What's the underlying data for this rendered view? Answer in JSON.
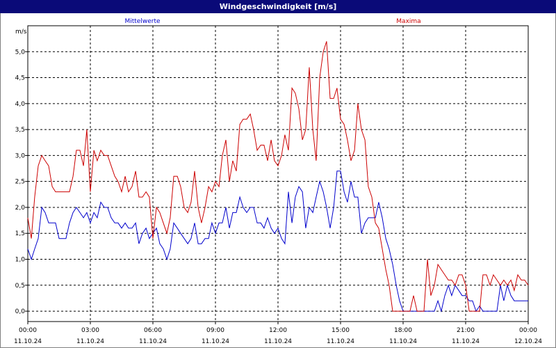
{
  "window": {
    "title": "Windgeschwindigkeit [m/s]"
  },
  "chart_data": {
    "type": "line",
    "title": "Windgeschwindigkeit [m/s]",
    "ylabel": "m/s",
    "ylim": [
      -0.2,
      5.5
    ],
    "y_ticks": [
      "5,0",
      "4,5",
      "4,0",
      "3,5",
      "3,0",
      "2,5",
      "2,0",
      "1,5",
      "1,0",
      "0,5",
      "0,0"
    ],
    "y_tick_values": [
      5.0,
      4.5,
      4.0,
      3.5,
      3.0,
      2.5,
      2.0,
      1.5,
      1.0,
      0.5,
      0.0
    ],
    "x_range_hours": [
      0,
      24
    ],
    "x_ticks": [
      {
        "time": "00:00",
        "date": "11.10.24"
      },
      {
        "time": "03:00",
        "date": "11.10.24"
      },
      {
        "time": "06:00",
        "date": "11.10.24"
      },
      {
        "time": "09:00",
        "date": "11.10.24"
      },
      {
        "time": "12:00",
        "date": "11.10.24"
      },
      {
        "time": "15:00",
        "date": "11.10.24"
      },
      {
        "time": "18:00",
        "date": "11.10.24"
      },
      {
        "time": "21:00",
        "date": "11.10.24"
      },
      {
        "time": "00:00",
        "date": "12.10.24"
      }
    ],
    "grid": true,
    "series": [
      {
        "name": "Mittelwerte",
        "color": "#0000cc",
        "points": [
          [
            0.0,
            1.2
          ],
          [
            0.17,
            1.0
          ],
          [
            0.33,
            1.2
          ],
          [
            0.5,
            1.4
          ],
          [
            0.67,
            2.0
          ],
          [
            0.83,
            1.9
          ],
          [
            1.0,
            1.7
          ],
          [
            1.17,
            1.7
          ],
          [
            1.33,
            1.7
          ],
          [
            1.5,
            1.4
          ],
          [
            1.67,
            1.4
          ],
          [
            1.83,
            1.4
          ],
          [
            2.0,
            1.7
          ],
          [
            2.17,
            1.9
          ],
          [
            2.33,
            2.0
          ],
          [
            2.5,
            1.9
          ],
          [
            2.67,
            1.8
          ],
          [
            2.83,
            1.9
          ],
          [
            3.0,
            1.7
          ],
          [
            3.17,
            1.9
          ],
          [
            3.33,
            1.8
          ],
          [
            3.5,
            2.1
          ],
          [
            3.67,
            2.0
          ],
          [
            3.83,
            2.0
          ],
          [
            4.0,
            1.8
          ],
          [
            4.17,
            1.7
          ],
          [
            4.33,
            1.7
          ],
          [
            4.5,
            1.6
          ],
          [
            4.67,
            1.7
          ],
          [
            4.83,
            1.6
          ],
          [
            5.0,
            1.6
          ],
          [
            5.17,
            1.7
          ],
          [
            5.33,
            1.3
          ],
          [
            5.5,
            1.5
          ],
          [
            5.67,
            1.6
          ],
          [
            5.83,
            1.4
          ],
          [
            6.0,
            1.5
          ],
          [
            6.17,
            1.6
          ],
          [
            6.33,
            1.3
          ],
          [
            6.5,
            1.2
          ],
          [
            6.67,
            1.0
          ],
          [
            6.83,
            1.2
          ],
          [
            7.0,
            1.7
          ],
          [
            7.17,
            1.6
          ],
          [
            7.33,
            1.5
          ],
          [
            7.5,
            1.4
          ],
          [
            7.67,
            1.3
          ],
          [
            7.83,
            1.4
          ],
          [
            8.0,
            1.7
          ],
          [
            8.17,
            1.3
          ],
          [
            8.33,
            1.3
          ],
          [
            8.5,
            1.4
          ],
          [
            8.67,
            1.4
          ],
          [
            8.83,
            1.7
          ],
          [
            9.0,
            1.5
          ],
          [
            9.17,
            1.7
          ],
          [
            9.33,
            1.7
          ],
          [
            9.5,
            2.0
          ],
          [
            9.67,
            1.6
          ],
          [
            9.83,
            1.9
          ],
          [
            10.0,
            1.9
          ],
          [
            10.17,
            2.2
          ],
          [
            10.33,
            2.0
          ],
          [
            10.5,
            1.9
          ],
          [
            10.67,
            2.0
          ],
          [
            10.83,
            2.0
          ],
          [
            11.0,
            1.7
          ],
          [
            11.17,
            1.7
          ],
          [
            11.33,
            1.6
          ],
          [
            11.5,
            1.8
          ],
          [
            11.67,
            1.6
          ],
          [
            11.83,
            1.5
          ],
          [
            12.0,
            1.6
          ],
          [
            12.17,
            1.4
          ],
          [
            12.33,
            1.3
          ],
          [
            12.5,
            2.3
          ],
          [
            12.67,
            1.7
          ],
          [
            12.83,
            2.2
          ],
          [
            13.0,
            2.4
          ],
          [
            13.17,
            2.3
          ],
          [
            13.33,
            1.6
          ],
          [
            13.5,
            2.0
          ],
          [
            13.67,
            1.9
          ],
          [
            13.83,
            2.2
          ],
          [
            14.0,
            2.5
          ],
          [
            14.17,
            2.3
          ],
          [
            14.33,
            2.0
          ],
          [
            14.5,
            1.6
          ],
          [
            14.67,
            2.0
          ],
          [
            14.83,
            2.7
          ],
          [
            15.0,
            2.7
          ],
          [
            15.17,
            2.3
          ],
          [
            15.33,
            2.1
          ],
          [
            15.5,
            2.5
          ],
          [
            15.67,
            2.2
          ],
          [
            15.83,
            2.2
          ],
          [
            16.0,
            1.5
          ],
          [
            16.17,
            1.7
          ],
          [
            16.33,
            1.8
          ],
          [
            16.5,
            1.8
          ],
          [
            16.67,
            1.8
          ],
          [
            16.83,
            2.1
          ],
          [
            17.0,
            1.8
          ],
          [
            17.17,
            1.4
          ],
          [
            17.33,
            1.2
          ],
          [
            17.5,
            0.9
          ],
          [
            17.67,
            0.5
          ],
          [
            17.83,
            0.2
          ],
          [
            18.0,
            0.0
          ],
          [
            18.17,
            0.0
          ],
          [
            18.33,
            0.0
          ],
          [
            18.5,
            0.0
          ],
          [
            18.67,
            0.0
          ],
          [
            18.83,
            0.0
          ],
          [
            19.0,
            0.0
          ],
          [
            19.17,
            0.0
          ],
          [
            19.33,
            0.0
          ],
          [
            19.5,
            0.0
          ],
          [
            19.67,
            0.2
          ],
          [
            19.83,
            0.0
          ],
          [
            20.0,
            0.3
          ],
          [
            20.17,
            0.5
          ],
          [
            20.33,
            0.3
          ],
          [
            20.5,
            0.5
          ],
          [
            20.67,
            0.4
          ],
          [
            20.83,
            0.3
          ],
          [
            21.0,
            0.3
          ],
          [
            21.17,
            0.2
          ],
          [
            21.33,
            0.2
          ],
          [
            21.5,
            0.0
          ],
          [
            21.67,
            0.1
          ],
          [
            21.83,
            0.0
          ],
          [
            22.0,
            0.0
          ],
          [
            22.17,
            0.0
          ],
          [
            22.33,
            0.0
          ],
          [
            22.5,
            0.0
          ],
          [
            22.67,
            0.5
          ],
          [
            22.83,
            0.2
          ],
          [
            23.0,
            0.5
          ],
          [
            23.17,
            0.3
          ],
          [
            23.33,
            0.2
          ],
          [
            23.5,
            0.2
          ],
          [
            23.67,
            0.2
          ],
          [
            23.83,
            0.2
          ],
          [
            24.0,
            0.2
          ]
        ]
      },
      {
        "name": "Maxima",
        "color": "#cc0000",
        "points": [
          [
            0.0,
            1.8
          ],
          [
            0.17,
            1.4
          ],
          [
            0.33,
            2.2
          ],
          [
            0.5,
            2.8
          ],
          [
            0.67,
            3.0
          ],
          [
            0.83,
            2.9
          ],
          [
            1.0,
            2.8
          ],
          [
            1.17,
            2.4
          ],
          [
            1.33,
            2.3
          ],
          [
            1.5,
            2.3
          ],
          [
            1.67,
            2.3
          ],
          [
            1.83,
            2.3
          ],
          [
            2.0,
            2.3
          ],
          [
            2.17,
            2.6
          ],
          [
            2.33,
            3.1
          ],
          [
            2.5,
            3.1
          ],
          [
            2.67,
            2.8
          ],
          [
            2.83,
            3.5
          ],
          [
            3.0,
            2.3
          ],
          [
            3.17,
            3.1
          ],
          [
            3.33,
            2.9
          ],
          [
            3.5,
            3.1
          ],
          [
            3.67,
            3.0
          ],
          [
            3.83,
            3.0
          ],
          [
            4.0,
            2.8
          ],
          [
            4.17,
            2.6
          ],
          [
            4.33,
            2.5
          ],
          [
            4.5,
            2.3
          ],
          [
            4.67,
            2.6
          ],
          [
            4.83,
            2.3
          ],
          [
            5.0,
            2.4
          ],
          [
            5.17,
            2.7
          ],
          [
            5.33,
            2.2
          ],
          [
            5.5,
            2.2
          ],
          [
            5.67,
            2.3
          ],
          [
            5.83,
            2.2
          ],
          [
            6.0,
            1.4
          ],
          [
            6.17,
            2.0
          ],
          [
            6.33,
            1.9
          ],
          [
            6.5,
            1.7
          ],
          [
            6.67,
            1.5
          ],
          [
            6.83,
            1.8
          ],
          [
            7.0,
            2.6
          ],
          [
            7.17,
            2.6
          ],
          [
            7.33,
            2.4
          ],
          [
            7.5,
            2.0
          ],
          [
            7.67,
            1.9
          ],
          [
            7.83,
            2.1
          ],
          [
            8.0,
            2.7
          ],
          [
            8.17,
            2.0
          ],
          [
            8.33,
            1.7
          ],
          [
            8.5,
            2.0
          ],
          [
            8.67,
            2.4
          ],
          [
            8.83,
            2.3
          ],
          [
            9.0,
            2.5
          ],
          [
            9.17,
            2.4
          ],
          [
            9.33,
            3.0
          ],
          [
            9.5,
            3.3
          ],
          [
            9.67,
            2.5
          ],
          [
            9.83,
            2.9
          ],
          [
            10.0,
            2.7
          ],
          [
            10.17,
            3.6
          ],
          [
            10.33,
            3.7
          ],
          [
            10.5,
            3.7
          ],
          [
            10.67,
            3.8
          ],
          [
            10.83,
            3.5
          ],
          [
            11.0,
            3.1
          ],
          [
            11.17,
            3.2
          ],
          [
            11.33,
            3.2
          ],
          [
            11.5,
            2.9
          ],
          [
            11.67,
            3.3
          ],
          [
            11.83,
            2.9
          ],
          [
            12.0,
            2.8
          ],
          [
            12.17,
            3.0
          ],
          [
            12.33,
            3.4
          ],
          [
            12.5,
            3.1
          ],
          [
            12.67,
            4.3
          ],
          [
            12.83,
            4.2
          ],
          [
            13.0,
            3.9
          ],
          [
            13.17,
            3.3
          ],
          [
            13.33,
            3.5
          ],
          [
            13.5,
            4.7
          ],
          [
            13.67,
            3.5
          ],
          [
            13.83,
            2.9
          ],
          [
            14.0,
            4.5
          ],
          [
            14.17,
            5.0
          ],
          [
            14.33,
            5.2
          ],
          [
            14.5,
            4.1
          ],
          [
            14.67,
            4.1
          ],
          [
            14.83,
            4.3
          ],
          [
            15.0,
            3.7
          ],
          [
            15.17,
            3.6
          ],
          [
            15.33,
            3.3
          ],
          [
            15.5,
            2.9
          ],
          [
            15.67,
            3.1
          ],
          [
            15.83,
            4.0
          ],
          [
            16.0,
            3.5
          ],
          [
            16.17,
            3.3
          ],
          [
            16.33,
            2.4
          ],
          [
            16.5,
            2.2
          ],
          [
            16.67,
            1.7
          ],
          [
            16.83,
            1.6
          ],
          [
            17.0,
            1.2
          ],
          [
            17.17,
            0.8
          ],
          [
            17.33,
            0.5
          ],
          [
            17.5,
            0.0
          ],
          [
            17.67,
            0.0
          ],
          [
            17.83,
            0.0
          ],
          [
            18.0,
            0.0
          ],
          [
            18.17,
            0.0
          ],
          [
            18.33,
            0.0
          ],
          [
            18.5,
            0.3
          ],
          [
            18.67,
            0.0
          ],
          [
            18.83,
            0.0
          ],
          [
            19.0,
            0.0
          ],
          [
            19.17,
            1.0
          ],
          [
            19.33,
            0.3
          ],
          [
            19.5,
            0.5
          ],
          [
            19.67,
            0.9
          ],
          [
            19.83,
            0.8
          ],
          [
            20.0,
            0.7
          ],
          [
            20.17,
            0.6
          ],
          [
            20.33,
            0.6
          ],
          [
            20.5,
            0.5
          ],
          [
            20.67,
            0.7
          ],
          [
            20.83,
            0.7
          ],
          [
            21.0,
            0.5
          ],
          [
            21.17,
            0.0
          ],
          [
            21.33,
            0.0
          ],
          [
            21.5,
            0.0
          ],
          [
            21.67,
            0.0
          ],
          [
            21.83,
            0.7
          ],
          [
            22.0,
            0.7
          ],
          [
            22.17,
            0.5
          ],
          [
            22.33,
            0.7
          ],
          [
            22.5,
            0.6
          ],
          [
            22.67,
            0.5
          ],
          [
            22.83,
            0.6
          ],
          [
            23.0,
            0.5
          ],
          [
            23.17,
            0.6
          ],
          [
            23.33,
            0.4
          ],
          [
            23.5,
            0.7
          ],
          [
            23.67,
            0.6
          ],
          [
            23.83,
            0.6
          ],
          [
            24.0,
            0.5
          ]
        ]
      }
    ]
  }
}
